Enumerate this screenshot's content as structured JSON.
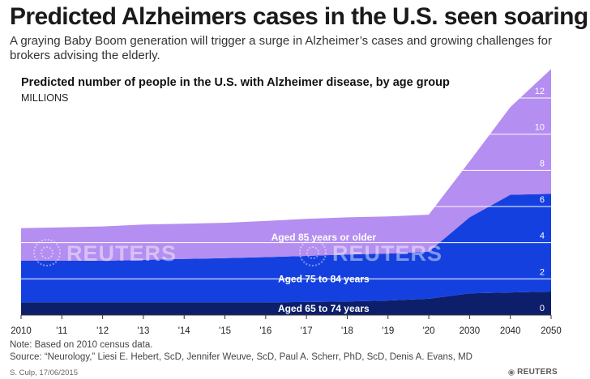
{
  "header": {
    "title": "Predicted Alzheimers cases in the U.S. seen soaring",
    "subtitle": "A graying Baby Boom generation will trigger a surge in Alzheimer’s cases and growing challenges for brokers advising the elderly."
  },
  "chart_data": {
    "type": "area",
    "stacked": true,
    "title": "Predicted number of people in the U.S. with Alzheimer disease, by age group",
    "ylabel": "MILLIONS",
    "ylim": [
      0,
      13.3
    ],
    "yticks": [
      0,
      2,
      4,
      6,
      8,
      10,
      12
    ],
    "grid": true,
    "categories": [
      "2010",
      "'11",
      "'12",
      "'13",
      "'14",
      "'15",
      "'16",
      "'17",
      "'18",
      "'19",
      "'20",
      "2030",
      "2040",
      "2050"
    ],
    "series": [
      {
        "name": "Aged 65 to 74 years",
        "color": "#0d1f6b",
        "values": [
          0.7,
          0.7,
          0.7,
          0.7,
          0.7,
          0.7,
          0.7,
          0.72,
          0.75,
          0.8,
          0.9,
          1.2,
          1.25,
          1.3
        ]
      },
      {
        "name": "Aged 75 to 84 years",
        "color": "#1540e0",
        "values": [
          2.3,
          2.3,
          2.3,
          2.35,
          2.4,
          2.45,
          2.5,
          2.55,
          2.6,
          2.6,
          2.6,
          4.2,
          5.4,
          5.4
        ]
      },
      {
        "name": "Aged 85 years or older",
        "color": "#b48ef0",
        "values": [
          1.8,
          1.85,
          1.9,
          1.95,
          1.95,
          1.95,
          2.0,
          2.05,
          2.05,
          2.05,
          2.05,
          3.1,
          4.85,
          6.9
        ]
      }
    ]
  },
  "footer": {
    "note": "Note: Based on 2010 census data.",
    "source": "Source: “Neurology,” Liesi E. Hebert, ScD, Jennifer Weuve, ScD, Paul A. Scherr, PhD, ScD, Denis A. Evans, MD",
    "credit": "S. Culp, 17/06/2015",
    "brand": "REUTERS",
    "watermark": "REUTERS"
  }
}
